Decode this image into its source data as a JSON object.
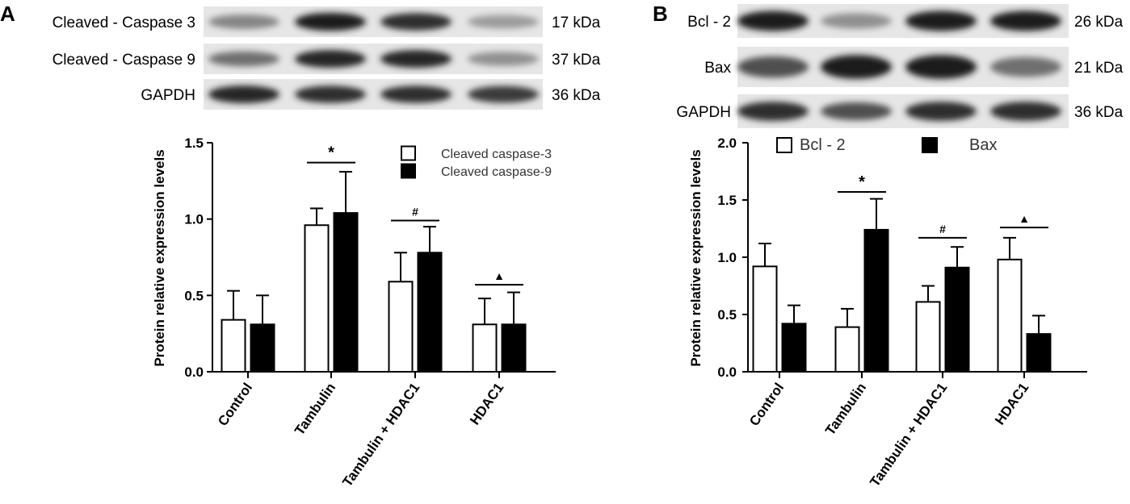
{
  "panels": [
    {
      "letter": "A",
      "blots": [
        {
          "label": "Cleaved - Caspase 3",
          "kda": "17 kDa",
          "bands": [
            0.45,
            0.95,
            0.85,
            0.35
          ]
        },
        {
          "label": "Cleaved - Caspase 9",
          "kda": "37 kDa",
          "bands": [
            0.55,
            0.9,
            0.9,
            0.4
          ]
        },
        {
          "label": "GAPDH",
          "kda": "36 kDa",
          "bands": [
            0.9,
            0.85,
            0.85,
            0.8
          ]
        }
      ]
    },
    {
      "letter": "B",
      "blots": [
        {
          "label": "Bcl - 2",
          "kda": "26 kDa",
          "bands": [
            0.95,
            0.4,
            0.95,
            0.95
          ]
        },
        {
          "label": "Bax",
          "kda": "21 kDa",
          "bands": [
            0.7,
            0.95,
            0.95,
            0.55
          ]
        },
        {
          "label": "GAPDH",
          "kda": "36 kDa",
          "bands": [
            0.85,
            0.7,
            0.85,
            0.85
          ]
        }
      ]
    }
  ],
  "chart_data": [
    {
      "type": "bar",
      "panel": "A",
      "categories": [
        "Control",
        "Tambulin",
        "Tambulin + HDAC1",
        "HDAC1"
      ],
      "series": [
        {
          "name": "Cleaved caspase-3",
          "fill": "#ffffff",
          "values": [
            0.34,
            0.96,
            0.59,
            0.31
          ],
          "errors": [
            0.19,
            0.11,
            0.19,
            0.17
          ]
        },
        {
          "name": "Cleaved caspase-9",
          "fill": "#000000",
          "values": [
            0.31,
            1.04,
            0.78,
            0.31
          ],
          "errors": [
            0.19,
            0.27,
            0.17,
            0.21
          ]
        }
      ],
      "ylabel": "Protein relative expression levels",
      "ylim": [
        0,
        1.5
      ],
      "yticks": [
        "0.0",
        "0.5",
        "1.0",
        "1.5"
      ],
      "significance": [
        {
          "category": "Tambulin",
          "symbol": "*",
          "value": 1.37
        },
        {
          "category": "Tambulin + HDAC1",
          "symbol": "#",
          "value": 0.99
        },
        {
          "category": "HDAC1",
          "symbol": "▲",
          "value": 0.57
        }
      ],
      "legend_position": "top-right"
    },
    {
      "type": "bar",
      "panel": "B",
      "categories": [
        "Control",
        "Tambulin",
        "Tambulin + HDAC1",
        "HDAC1"
      ],
      "series": [
        {
          "name": "Bcl - 2",
          "fill": "#ffffff",
          "values": [
            0.92,
            0.39,
            0.61,
            0.98
          ],
          "errors": [
            0.2,
            0.16,
            0.14,
            0.19
          ]
        },
        {
          "name": "Bax",
          "fill": "#000000",
          "values": [
            0.42,
            1.24,
            0.91,
            0.33
          ],
          "errors": [
            0.16,
            0.27,
            0.18,
            0.16
          ]
        }
      ],
      "ylabel": "Protein relative expression levels",
      "ylim": [
        0,
        2.0
      ],
      "yticks": [
        "0.0",
        "0.5",
        "1.0",
        "1.5",
        "2.0"
      ],
      "significance": [
        {
          "category": "Tambulin",
          "symbol": "*",
          "value": 1.57
        },
        {
          "category": "Tambulin + HDAC1",
          "symbol": "#",
          "value": 1.17
        },
        {
          "category": "HDAC1",
          "symbol": "▲",
          "value": 1.26
        }
      ],
      "legend_position": "top"
    }
  ]
}
